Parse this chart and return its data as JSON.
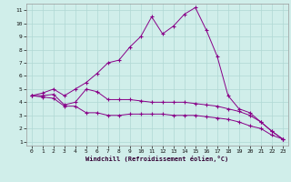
{
  "line3_x": [
    0,
    1,
    2,
    3,
    4,
    5,
    6,
    7,
    8,
    9,
    10,
    11,
    12,
    13,
    14,
    15,
    16,
    17,
    18,
    19,
    20,
    21,
    22,
    23
  ],
  "line3_y": [
    4.5,
    4.7,
    5.0,
    4.5,
    5.0,
    5.5,
    6.2,
    7.0,
    7.2,
    8.2,
    9.0,
    10.5,
    9.2,
    9.8,
    10.7,
    11.2,
    9.5,
    7.5,
    4.5,
    3.5,
    3.2,
    2.5,
    1.8,
    1.2
  ],
  "line1_x": [
    0,
    1,
    2,
    3,
    4,
    5,
    6,
    7,
    8,
    9,
    10,
    11,
    12,
    13,
    14,
    15,
    16,
    17,
    18,
    19,
    20,
    21,
    22,
    23
  ],
  "line1_y": [
    4.5,
    4.5,
    4.6,
    3.8,
    4.0,
    5.0,
    4.8,
    4.2,
    4.2,
    4.2,
    4.1,
    4.0,
    4.0,
    4.0,
    4.0,
    3.9,
    3.8,
    3.7,
    3.5,
    3.3,
    3.0,
    2.5,
    1.8,
    1.2
  ],
  "line2_x": [
    0,
    1,
    2,
    3,
    4,
    5,
    6,
    7,
    8,
    9,
    10,
    11,
    12,
    13,
    14,
    15,
    16,
    17,
    18,
    19,
    20,
    21,
    22,
    23
  ],
  "line2_y": [
    4.5,
    4.4,
    4.3,
    3.7,
    3.7,
    3.2,
    3.2,
    3.0,
    3.0,
    3.1,
    3.1,
    3.1,
    3.1,
    3.0,
    3.0,
    3.0,
    2.9,
    2.8,
    2.7,
    2.5,
    2.2,
    2.0,
    1.5,
    1.2
  ],
  "line_color": "#880088",
  "bg_color": "#d0eeea",
  "grid_color": "#b0d8d4",
  "xlabel": "Windchill (Refroidissement éolien,°C)",
  "xlim_min": -0.5,
  "xlim_max": 23.5,
  "ylim_min": 0.7,
  "ylim_max": 11.5,
  "xticks": [
    0,
    1,
    2,
    3,
    4,
    5,
    6,
    7,
    8,
    9,
    10,
    11,
    12,
    13,
    14,
    15,
    16,
    17,
    18,
    19,
    20,
    21,
    22,
    23
  ],
  "yticks": [
    1,
    2,
    3,
    4,
    5,
    6,
    7,
    8,
    9,
    10,
    11
  ]
}
